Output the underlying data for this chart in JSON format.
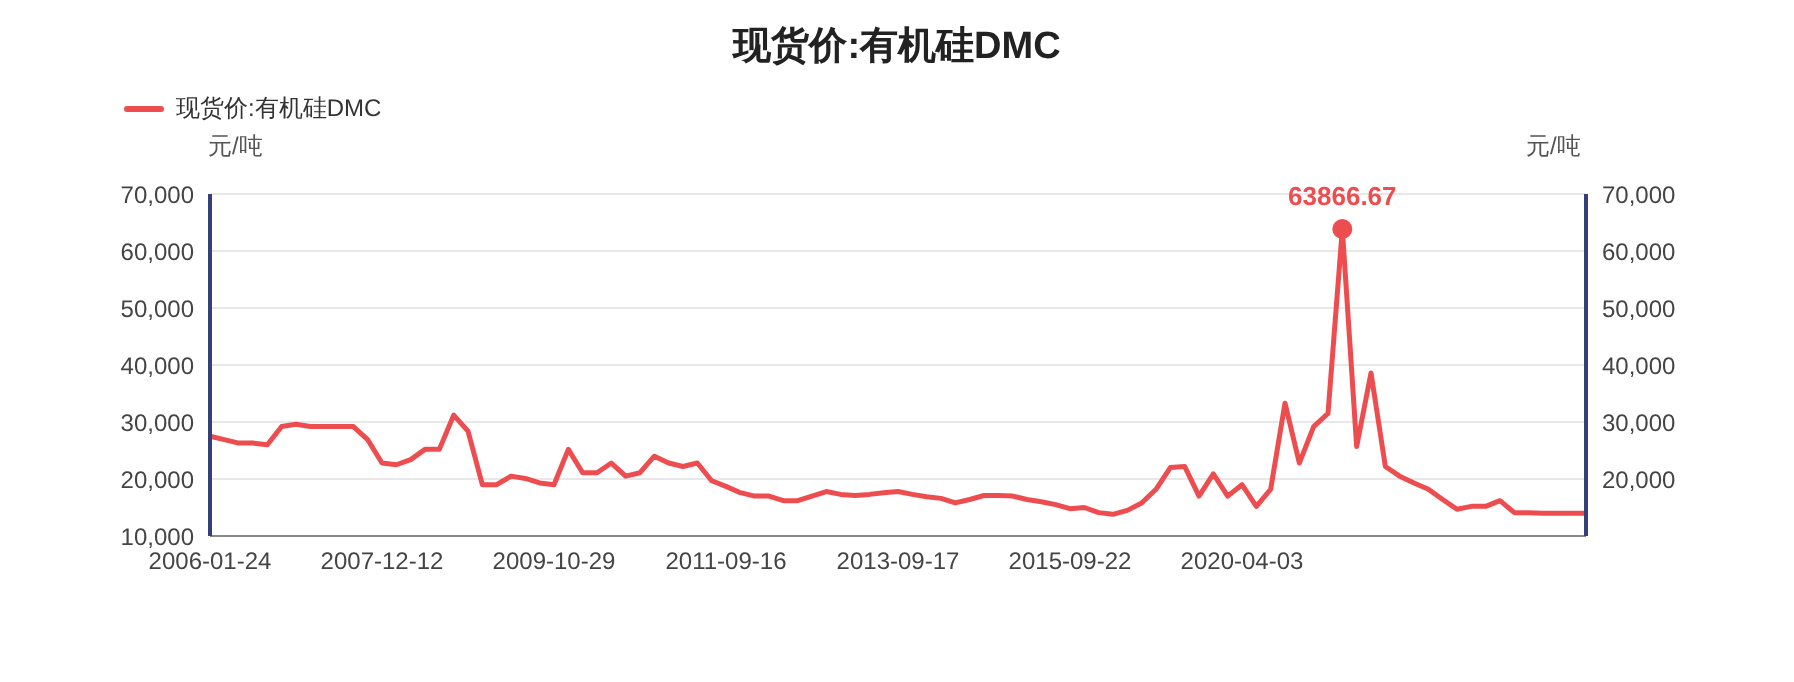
{
  "chart_data": {
    "type": "line",
    "title": "现货价:有机硅DMC",
    "ylabel": "元/吨",
    "y2label": "元/吨",
    "categories": [
      "2006-01-24",
      null,
      null,
      null,
      null,
      null,
      null,
      null,
      null,
      null,
      null,
      null,
      "2007-12-12",
      null,
      null,
      null,
      null,
      null,
      null,
      null,
      null,
      null,
      null,
      null,
      "2009-10-29",
      null,
      null,
      null,
      null,
      null,
      null,
      null,
      null,
      null,
      null,
      null,
      "2011-09-16",
      null,
      null,
      null,
      null,
      null,
      null,
      null,
      null,
      null,
      null,
      null,
      "2013-09-17",
      null,
      null,
      null,
      null,
      null,
      null,
      null,
      null,
      null,
      null,
      null,
      "2015-09-22",
      null,
      null,
      null,
      null,
      null,
      null,
      null,
      null,
      null,
      null,
      null,
      "2020-04-03",
      null,
      null,
      null,
      null,
      null,
      null,
      null,
      null,
      null,
      null,
      null,
      null,
      null,
      null,
      null,
      null,
      null,
      null,
      null,
      null,
      null,
      null,
      null,
      null
    ],
    "series": [
      {
        "name": "现货价:有机硅DMC",
        "color": "#ee4d50",
        "values": [
          27500,
          26900,
          26300,
          26300,
          26000,
          29200,
          29600,
          29200,
          29200,
          29200,
          29200,
          26900,
          22800,
          22500,
          23400,
          25200,
          25200,
          31200,
          28400,
          19000,
          19000,
          20500,
          20100,
          19300,
          19000,
          25200,
          21100,
          21100,
          22800,
          20500,
          21100,
          24000,
          22800,
          22200,
          22800,
          19700,
          18700,
          17600,
          17000,
          17000,
          16200,
          16200,
          17000,
          17800,
          17300,
          17100,
          17300,
          17600,
          17800,
          17300,
          16900,
          16600,
          15800,
          16400,
          17100,
          17100,
          17000,
          16400,
          16000,
          15500,
          14800,
          15000,
          14100,
          13800,
          14500,
          15800,
          18200,
          22000,
          22200,
          17000,
          20900,
          17000,
          19000,
          15200,
          18200,
          33300,
          22800,
          29200,
          31500,
          63866.67,
          25700,
          38600,
          22200,
          20500,
          19300,
          18200,
          16400,
          14700,
          15200,
          15200,
          16200,
          14100,
          14100,
          14000,
          14000,
          14000,
          14000
        ],
        "value_labels": [
          null,
          null,
          null,
          null,
          null,
          null,
          null,
          null,
          null,
          null,
          null,
          null,
          null,
          null,
          null,
          null,
          null,
          null,
          null,
          null,
          null,
          null,
          null,
          null,
          null,
          null,
          null,
          null,
          null,
          null,
          null,
          null,
          null,
          null,
          null,
          null,
          null,
          null,
          null,
          null,
          null,
          null,
          null,
          null,
          null,
          null,
          null,
          null,
          null,
          null,
          null,
          null,
          null,
          null,
          null,
          null,
          null,
          null,
          null,
          null,
          null,
          null,
          null,
          null,
          null,
          null,
          null,
          null,
          null,
          null,
          null,
          null,
          null,
          null,
          null,
          null,
          null,
          null,
          null,
          "63866.67",
          null,
          null,
          null,
          null,
          null,
          null,
          null,
          null,
          null,
          null,
          null,
          null,
          null,
          null,
          null,
          null,
          null
        ]
      }
    ],
    "ylim": [
      10000,
      70000
    ],
    "yticks": [
      {
        "value": 10000,
        "label": "10,000"
      },
      {
        "value": 20000,
        "label": "20,000"
      },
      {
        "value": 30000,
        "label": "30,000"
      },
      {
        "value": 40000,
        "label": "40,000"
      },
      {
        "value": 50000,
        "label": "50,000"
      },
      {
        "value": 60000,
        "label": "60,000"
      },
      {
        "value": 70000,
        "label": "70,000"
      }
    ],
    "y2lim": [
      10000,
      70000
    ],
    "y2ticks": [
      {
        "value": 20000,
        "label": "20,000"
      },
      {
        "value": 30000,
        "label": "30,000"
      },
      {
        "value": 40000,
        "label": "40,000"
      },
      {
        "value": 50000,
        "label": "50,000"
      },
      {
        "value": 60000,
        "label": "60,000"
      },
      {
        "value": 70000,
        "label": "70,000"
      }
    ],
    "grid": "y",
    "legend": "top left"
  }
}
